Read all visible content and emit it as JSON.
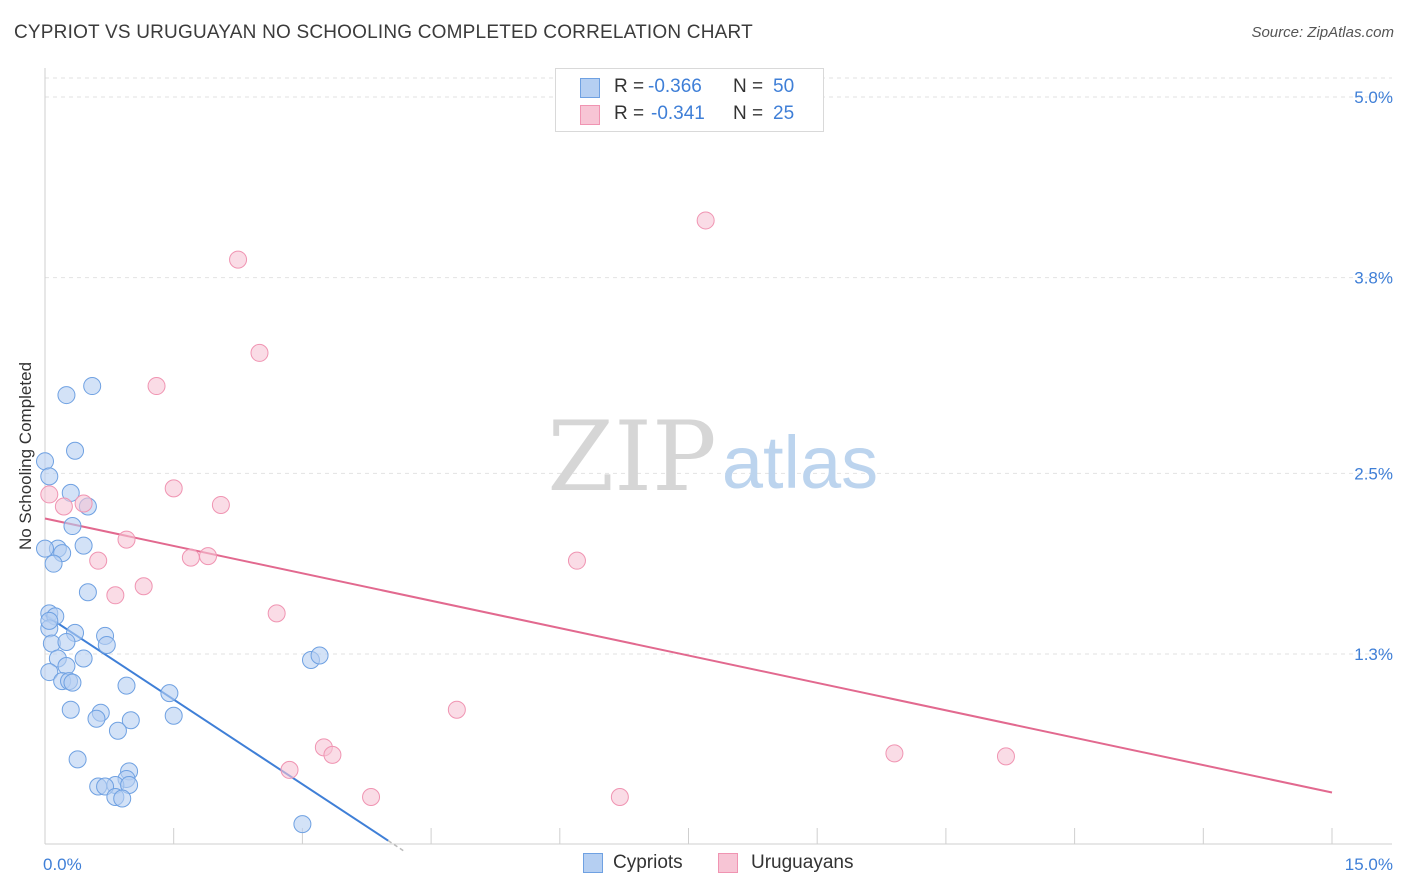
{
  "title": "CYPRIOT VS URUGUAYAN NO SCHOOLING COMPLETED CORRELATION CHART",
  "source": "Source: ZipAtlas.com",
  "watermark": {
    "zip": "ZIP",
    "atlas": "atlas"
  },
  "chart_data": {
    "type": "scatter",
    "xlabel": "",
    "ylabel": "No Schooling Completed",
    "xlim": [
      0,
      15
    ],
    "ylim": [
      0,
      5.2
    ],
    "x_tick_labels": [
      {
        "value": 0,
        "label": "0.0%"
      },
      {
        "value": 15,
        "label": "15.0%"
      }
    ],
    "x_minor_ticks": [
      1.5,
      3,
      4.5,
      6,
      7.5,
      9,
      10.5,
      12,
      13.5,
      15
    ],
    "y_tick_labels": [
      {
        "value": 1.3,
        "label": "1.3%"
      },
      {
        "value": 2.5,
        "label": "2.5%"
      },
      {
        "value": 3.8,
        "label": "3.8%"
      },
      {
        "value": 5.0,
        "label": "5.0%"
      }
    ],
    "legend_top": [
      {
        "r_label": "R =",
        "r_value": "-0.366",
        "n_label": "N =",
        "n_value": "50",
        "color": "#6fa1e2"
      },
      {
        "r_label": "R =",
        "r_value": "-0.341",
        "n_label": "N =",
        "n_value": "25",
        "color": "#f094b2"
      }
    ],
    "series": [
      {
        "name": "Cypriots",
        "fill": "#b5cff2",
        "stroke": "#6fa1e2",
        "line_color": "#3f7fd7",
        "trend": {
          "x0": 0.0,
          "y0": 1.56,
          "x1": 4.0,
          "y1": 0.06,
          "dash_to_x": 4.2
        },
        "points": [
          [
            0.0,
            2.58
          ],
          [
            0.05,
            2.48
          ],
          [
            0.3,
            2.37
          ],
          [
            0.5,
            2.28
          ],
          [
            0.35,
            2.65
          ],
          [
            0.25,
            3.02
          ],
          [
            0.55,
            3.08
          ],
          [
            0.32,
            2.15
          ],
          [
            0.15,
            2.0
          ],
          [
            0.2,
            1.97
          ],
          [
            0.1,
            1.9
          ],
          [
            0.45,
            2.02
          ],
          [
            0.5,
            1.71
          ],
          [
            0.05,
            1.57
          ],
          [
            0.12,
            1.55
          ],
          [
            0.05,
            1.47
          ],
          [
            0.35,
            1.44
          ],
          [
            0.7,
            1.42
          ],
          [
            0.08,
            1.37
          ],
          [
            0.25,
            1.38
          ],
          [
            0.72,
            1.36
          ],
          [
            0.15,
            1.27
          ],
          [
            0.45,
            1.27
          ],
          [
            0.25,
            1.22
          ],
          [
            0.05,
            1.18
          ],
          [
            0.2,
            1.12
          ],
          [
            0.28,
            1.12
          ],
          [
            0.32,
            1.11
          ],
          [
            0.95,
            1.09
          ],
          [
            1.45,
            1.04
          ],
          [
            0.3,
            0.93
          ],
          [
            0.65,
            0.91
          ],
          [
            1.5,
            0.89
          ],
          [
            0.6,
            0.87
          ],
          [
            1.0,
            0.86
          ],
          [
            0.85,
            0.79
          ],
          [
            0.38,
            0.6
          ],
          [
            0.98,
            0.52
          ],
          [
            0.95,
            0.47
          ],
          [
            0.82,
            0.43
          ],
          [
            0.62,
            0.42
          ],
          [
            0.7,
            0.42
          ],
          [
            0.98,
            0.43
          ],
          [
            0.82,
            0.35
          ],
          [
            0.9,
            0.34
          ],
          [
            3.1,
            1.26
          ],
          [
            3.2,
            1.29
          ],
          [
            3.0,
            0.17
          ],
          [
            0.0,
            2.0
          ],
          [
            0.05,
            1.52
          ]
        ]
      },
      {
        "name": "Uruguayans",
        "fill": "#f7c5d5",
        "stroke": "#f094b2",
        "line_color": "#e2698f",
        "trend": {
          "x0": 0.0,
          "y0": 2.2,
          "x1": 15.0,
          "y1": 0.38
        },
        "points": [
          [
            0.05,
            2.36
          ],
          [
            0.22,
            2.28
          ],
          [
            0.45,
            2.3
          ],
          [
            7.7,
            4.18
          ],
          [
            2.25,
            3.92
          ],
          [
            2.5,
            3.3
          ],
          [
            1.3,
            3.08
          ],
          [
            1.5,
            2.4
          ],
          [
            2.05,
            2.29
          ],
          [
            0.95,
            2.06
          ],
          [
            0.62,
            1.92
          ],
          [
            1.7,
            1.94
          ],
          [
            1.9,
            1.95
          ],
          [
            6.2,
            1.92
          ],
          [
            1.15,
            1.75
          ],
          [
            0.82,
            1.69
          ],
          [
            2.7,
            1.57
          ],
          [
            4.8,
            0.93
          ],
          [
            3.25,
            0.68
          ],
          [
            3.35,
            0.63
          ],
          [
            9.9,
            0.64
          ],
          [
            11.2,
            0.62
          ],
          [
            2.85,
            0.53
          ],
          [
            3.8,
            0.35
          ],
          [
            6.7,
            0.35
          ]
        ]
      }
    ],
    "legend_bottom": [
      "Cypriots",
      "Uruguayans"
    ]
  }
}
